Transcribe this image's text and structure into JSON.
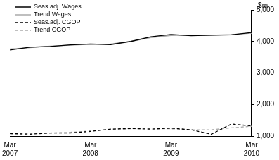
{
  "chart_data": {
    "type": "line",
    "ylabel": "$m",
    "categories": [
      "Mar 2007",
      null,
      null,
      null,
      "Mar 2008",
      null,
      null,
      null,
      "Mar 2009",
      null,
      null,
      null,
      "Mar 2010"
    ],
    "series": [
      {
        "name": "Seas.adj. Wages",
        "color": "#000000",
        "line_style": "solid",
        "values": [
          3730,
          3820,
          3840,
          3890,
          3920,
          3900,
          4000,
          4150,
          4220,
          4180,
          4200,
          4210,
          4280
        ]
      },
      {
        "name": "Trend Wages",
        "color": "#aaaaaa",
        "line_style": "solid",
        "values": [
          3760,
          3800,
          3850,
          3880,
          3910,
          3920,
          4000,
          4120,
          4190,
          4200,
          4200,
          4220,
          4260
        ]
      },
      {
        "name": "Seas.adj. CGOP",
        "color": "#000000",
        "line_style": "dashed",
        "values": [
          1080,
          1060,
          1100,
          1100,
          1150,
          1220,
          1240,
          1220,
          1250,
          1200,
          1060,
          1380,
          1320
        ]
      },
      {
        "name": "Trend CGOP",
        "color": "#aaaaaa",
        "line_style": "dashed",
        "values": [
          1070,
          1080,
          1100,
          1120,
          1160,
          1210,
          1230,
          1240,
          1230,
          1200,
          1200,
          1260,
          1310
        ]
      }
    ],
    "ylim": [
      1000,
      5000
    ],
    "yticks": [
      1000,
      2000,
      3000,
      4000,
      5000
    ],
    "grid": false,
    "legend": "upper left"
  }
}
